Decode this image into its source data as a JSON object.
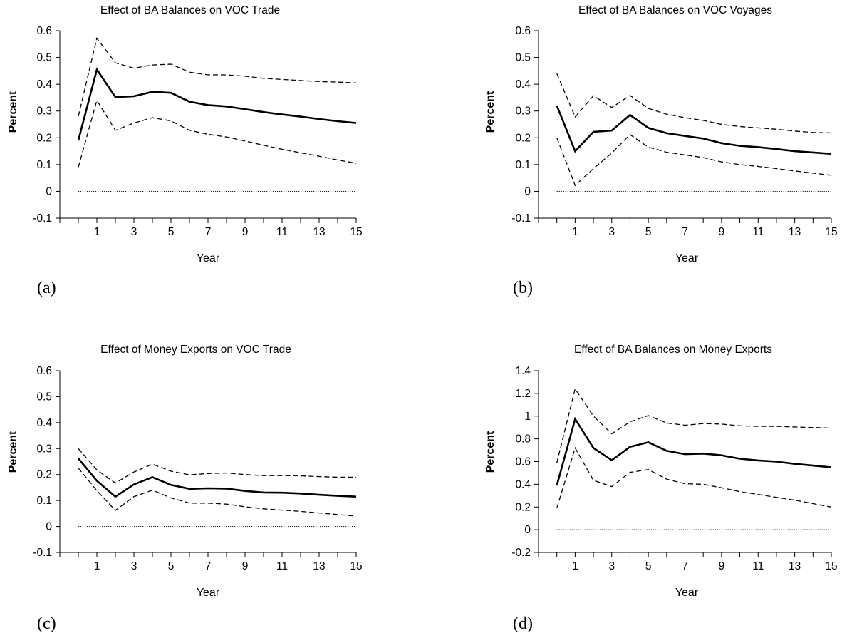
{
  "chart_data": [
    {
      "type": "line",
      "panel_label": "(a)",
      "title": "Effect of BA Balances on VOC Trade",
      "xlabel": "Year",
      "ylabel": "Percent",
      "xlim": [
        -1,
        15
      ],
      "ylim": [
        -0.1,
        0.6
      ],
      "yticks": [
        -0.1,
        0,
        0.1,
        0.2,
        0.3,
        0.4,
        0.5,
        0.6
      ],
      "ytick_labels": [
        "-0.1",
        "0",
        "0.1",
        "0.2",
        "0.3",
        "0.4",
        "0.5",
        "0.6"
      ],
      "xticks_labeled": [
        1,
        3,
        5,
        7,
        9,
        11,
        13,
        15
      ],
      "xtick_labels": [
        "1",
        "3",
        "5",
        "7",
        "9",
        "11",
        "13",
        "15"
      ],
      "grid": false,
      "legend": "none",
      "x": [
        0,
        1,
        2,
        3,
        4,
        5,
        6,
        7,
        8,
        9,
        10,
        11,
        12,
        13,
        14,
        15
      ],
      "series": [
        {
          "style": "solid",
          "values": [
            0.19,
            0.455,
            0.352,
            0.355,
            0.372,
            0.368,
            0.335,
            0.322,
            0.317,
            0.307,
            0.296,
            0.287,
            0.279,
            0.27,
            0.262,
            0.255
          ]
        },
        {
          "style": "dashed",
          "values": [
            0.28,
            0.572,
            0.48,
            0.46,
            0.472,
            0.475,
            0.445,
            0.435,
            0.435,
            0.43,
            0.422,
            0.418,
            0.414,
            0.41,
            0.408,
            0.405
          ]
        },
        {
          "style": "dashed",
          "values": [
            0.09,
            0.34,
            0.228,
            0.255,
            0.275,
            0.263,
            0.228,
            0.213,
            0.203,
            0.188,
            0.172,
            0.157,
            0.144,
            0.131,
            0.117,
            0.105
          ]
        },
        {
          "style": "dotted",
          "values": [
            0,
            0,
            0,
            0,
            0,
            0,
            0,
            0,
            0,
            0,
            0,
            0,
            0,
            0,
            0,
            0
          ]
        }
      ]
    },
    {
      "type": "line",
      "panel_label": "(b)",
      "title": "Effect of BA Balances on VOC Voyages",
      "xlabel": "Year",
      "ylabel": "Percent",
      "xlim": [
        -1,
        15
      ],
      "ylim": [
        -0.1,
        0.6
      ],
      "yticks": [
        -0.1,
        0,
        0.1,
        0.2,
        0.3,
        0.4,
        0.5,
        0.6
      ],
      "ytick_labels": [
        "-0.1",
        "0",
        "0.1",
        "0.2",
        "0.3",
        "0.4",
        "0.5",
        "0.6"
      ],
      "xticks_labeled": [
        1,
        3,
        5,
        7,
        9,
        11,
        13,
        15
      ],
      "xtick_labels": [
        "1",
        "3",
        "5",
        "7",
        "9",
        "11",
        "13",
        "15"
      ],
      "grid": false,
      "legend": "none",
      "x": [
        0,
        1,
        2,
        3,
        4,
        5,
        6,
        7,
        8,
        9,
        10,
        11,
        12,
        13,
        14,
        15
      ],
      "series": [
        {
          "style": "solid",
          "values": [
            0.32,
            0.15,
            0.222,
            0.227,
            0.285,
            0.237,
            0.217,
            0.207,
            0.197,
            0.18,
            0.17,
            0.165,
            0.158,
            0.15,
            0.145,
            0.14
          ]
        },
        {
          "style": "dashed",
          "values": [
            0.44,
            0.278,
            0.357,
            0.313,
            0.358,
            0.31,
            0.288,
            0.275,
            0.265,
            0.25,
            0.242,
            0.237,
            0.232,
            0.225,
            0.22,
            0.218
          ]
        },
        {
          "style": "dashed",
          "values": [
            0.2,
            0.022,
            0.085,
            0.143,
            0.212,
            0.165,
            0.146,
            0.136,
            0.126,
            0.11,
            0.1,
            0.093,
            0.085,
            0.076,
            0.068,
            0.06
          ]
        },
        {
          "style": "dotted",
          "values": [
            0,
            0,
            0,
            0,
            0,
            0,
            0,
            0,
            0,
            0,
            0,
            0,
            0,
            0,
            0,
            0
          ]
        }
      ]
    },
    {
      "type": "line",
      "panel_label": "(c)",
      "title": "Effect of Money Exports on VOC Trade",
      "xlabel": "Year",
      "ylabel": "Percent",
      "xlim": [
        -1,
        15
      ],
      "ylim": [
        -0.1,
        0.6
      ],
      "yticks": [
        -0.1,
        0,
        0.1,
        0.2,
        0.3,
        0.4,
        0.5,
        0.6
      ],
      "ytick_labels": [
        "-0.1",
        "0",
        "0.1",
        "0.2",
        "0.3",
        "0.4",
        "0.5",
        "0.6"
      ],
      "xticks_labeled": [
        1,
        3,
        5,
        7,
        9,
        11,
        13,
        15
      ],
      "xtick_labels": [
        "1",
        "3",
        "5",
        "7",
        "9",
        "11",
        "13",
        "15"
      ],
      "grid": false,
      "legend": "none",
      "x": [
        0,
        1,
        2,
        3,
        4,
        5,
        6,
        7,
        8,
        9,
        10,
        11,
        12,
        13,
        14,
        15
      ],
      "series": [
        {
          "style": "solid",
          "values": [
            0.262,
            0.176,
            0.115,
            0.162,
            0.19,
            0.16,
            0.145,
            0.147,
            0.146,
            0.137,
            0.131,
            0.13,
            0.127,
            0.122,
            0.118,
            0.115
          ]
        },
        {
          "style": "dashed",
          "values": [
            0.3,
            0.218,
            0.167,
            0.21,
            0.24,
            0.213,
            0.199,
            0.204,
            0.206,
            0.2,
            0.196,
            0.196,
            0.195,
            0.192,
            0.19,
            0.19
          ]
        },
        {
          "style": "dashed",
          "values": [
            0.225,
            0.138,
            0.062,
            0.115,
            0.14,
            0.11,
            0.09,
            0.09,
            0.086,
            0.076,
            0.068,
            0.063,
            0.058,
            0.052,
            0.046,
            0.04
          ]
        },
        {
          "style": "dotted",
          "values": [
            0,
            0,
            0,
            0,
            0,
            0,
            0,
            0,
            0,
            0,
            0,
            0,
            0,
            0,
            0,
            0
          ]
        }
      ]
    },
    {
      "type": "line",
      "panel_label": "(d)",
      "title": "Effect of BA Balances on Money Exports",
      "xlabel": "Year",
      "ylabel": "Percent",
      "xlim": [
        -1,
        15
      ],
      "ylim": [
        -0.2,
        1.4
      ],
      "yticks": [
        -0.2,
        0,
        0.2,
        0.4,
        0.6,
        0.8,
        1,
        1.2,
        1.4
      ],
      "ytick_labels": [
        "-0.2",
        "0",
        "0.2",
        "0.4",
        "0.6",
        "0.8",
        "1",
        "1.2",
        "1.4"
      ],
      "xticks_labeled": [
        1,
        3,
        5,
        7,
        9,
        11,
        13,
        15
      ],
      "xtick_labels": [
        "1",
        "3",
        "5",
        "7",
        "9",
        "11",
        "13",
        "15"
      ],
      "grid": false,
      "legend": "none",
      "x": [
        0,
        1,
        2,
        3,
        4,
        5,
        6,
        7,
        8,
        9,
        10,
        11,
        12,
        13,
        14,
        15
      ],
      "series": [
        {
          "style": "solid",
          "values": [
            0.39,
            0.975,
            0.72,
            0.612,
            0.73,
            0.77,
            0.695,
            0.665,
            0.67,
            0.655,
            0.625,
            0.61,
            0.6,
            0.58,
            0.565,
            0.55
          ]
        },
        {
          "style": "dashed",
          "values": [
            0.59,
            1.24,
            1.0,
            0.845,
            0.95,
            1.005,
            0.94,
            0.92,
            0.935,
            0.93,
            0.915,
            0.91,
            0.91,
            0.905,
            0.9,
            0.895
          ]
        },
        {
          "style": "dashed",
          "values": [
            0.19,
            0.72,
            0.435,
            0.38,
            0.505,
            0.53,
            0.445,
            0.405,
            0.4,
            0.37,
            0.335,
            0.31,
            0.285,
            0.26,
            0.23,
            0.2
          ]
        },
        {
          "style": "dotted",
          "values": [
            0,
            0,
            0,
            0,
            0,
            0,
            0,
            0,
            0,
            0,
            0,
            0,
            0,
            0,
            0,
            0
          ]
        }
      ]
    }
  ]
}
